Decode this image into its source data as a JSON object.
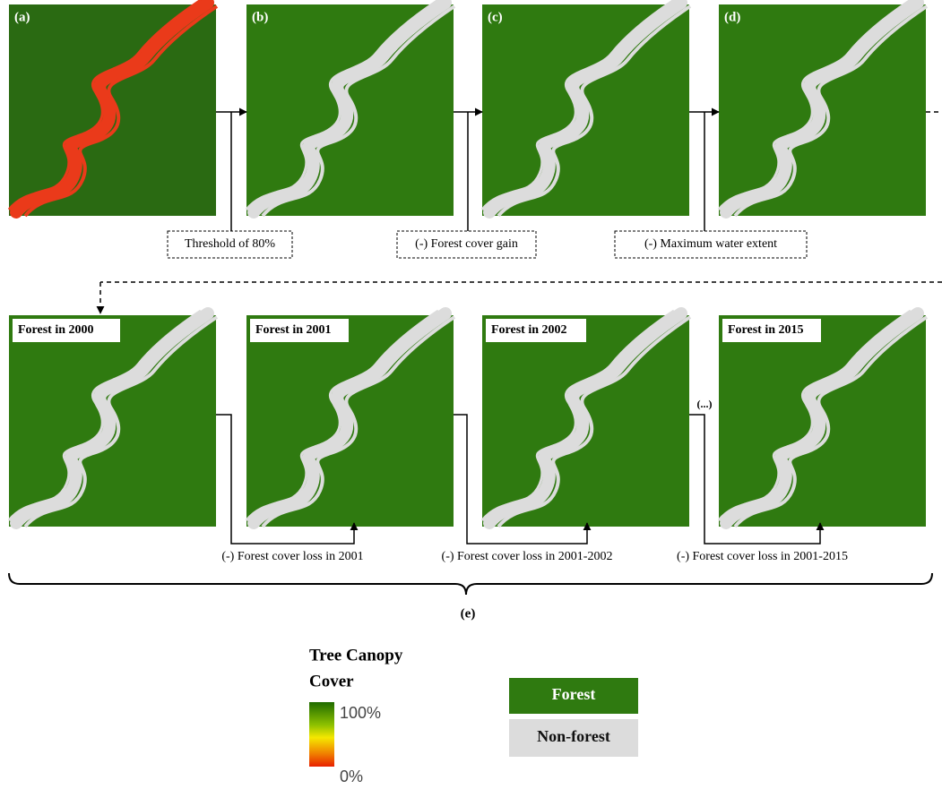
{
  "top_panels": [
    {
      "label": "(a)"
    },
    {
      "label": "(b)"
    },
    {
      "label": "(c)"
    },
    {
      "label": "(d)"
    }
  ],
  "steps": [
    "Threshold of 80%",
    "(-) Forest cover gain",
    "(-) Maximum water extent"
  ],
  "bottom_panels": [
    {
      "label": "Forest in 2000"
    },
    {
      "label": "Forest in 2001"
    },
    {
      "label": "Forest in 2002"
    },
    {
      "label": "Forest in 2015"
    }
  ],
  "ellipsis": "(...)",
  "loss_steps": [
    "(-) Forest cover loss in 2001",
    "(-) Forest cover loss in 2001-2002",
    "(-) Forest cover loss in 2001-2015"
  ],
  "group_label": "(e)",
  "legend": {
    "gradient_title_lines": [
      "Tree Canopy",
      "Cover"
    ],
    "high": "100%",
    "low": "0%",
    "classes": [
      "Forest",
      "Non-forest"
    ]
  }
}
